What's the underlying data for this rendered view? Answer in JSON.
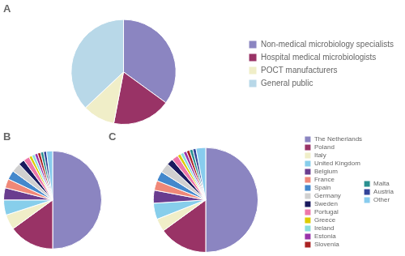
{
  "chart_data": [
    {
      "type": "pie",
      "title": "A",
      "categories": [
        "Non-medical microbiology specialists",
        "Hospital medical microbiologists",
        "POCT manufacturers",
        "General public"
      ],
      "values": [
        35,
        18,
        10,
        37
      ],
      "colors": [
        "#8b85c1",
        "#993366",
        "#f0eec8",
        "#b8d8e8"
      ],
      "legend": "right"
    },
    {
      "type": "pie",
      "title": "B",
      "categories": [
        "The Netherlands",
        "Poland",
        "Italy",
        "United Kingdom",
        "Belgium",
        "France",
        "Spain",
        "Germany",
        "Sweden",
        "Portugal",
        "Greece",
        "Ireland",
        "Estonia",
        "Slovenia",
        "Malta",
        "Austria",
        "Other"
      ],
      "values": [
        50,
        15,
        5,
        5,
        4,
        3,
        3,
        3,
        2,
        2,
        1,
        1,
        1,
        1,
        1,
        1,
        2
      ],
      "colors": [
        "#8b85c1",
        "#993366",
        "#f0eec8",
        "#87ceeb",
        "#6a3d8f",
        "#f08878",
        "#4488cc",
        "#d0d0d0",
        "#1a1a5e",
        "#ee77aa",
        "#ddcc00",
        "#88dddd",
        "#9933aa",
        "#aa2222",
        "#2a9090",
        "#334499",
        "#88ccee"
      ]
    },
    {
      "type": "pie",
      "title": "C",
      "categories": [
        "The Netherlands",
        "Poland",
        "Italy",
        "United Kingdom",
        "Belgium",
        "France",
        "Spain",
        "Germany",
        "Sweden",
        "Portugal",
        "Greece",
        "Ireland",
        "Estonia",
        "Slovenia",
        "Malta",
        "Austria",
        "Other"
      ],
      "values": [
        50,
        15,
        4,
        5,
        4,
        3,
        3,
        3,
        2,
        2,
        1,
        1,
        1,
        1,
        1,
        1,
        3
      ],
      "colors": [
        "#8b85c1",
        "#993366",
        "#f0eec8",
        "#87ceeb",
        "#6a3d8f",
        "#f08878",
        "#4488cc",
        "#d0d0d0",
        "#1a1a5e",
        "#ee77aa",
        "#ddcc00",
        "#88dddd",
        "#9933aa",
        "#aa2222",
        "#2a9090",
        "#334499",
        "#88ccee"
      ],
      "legend": "right"
    }
  ]
}
